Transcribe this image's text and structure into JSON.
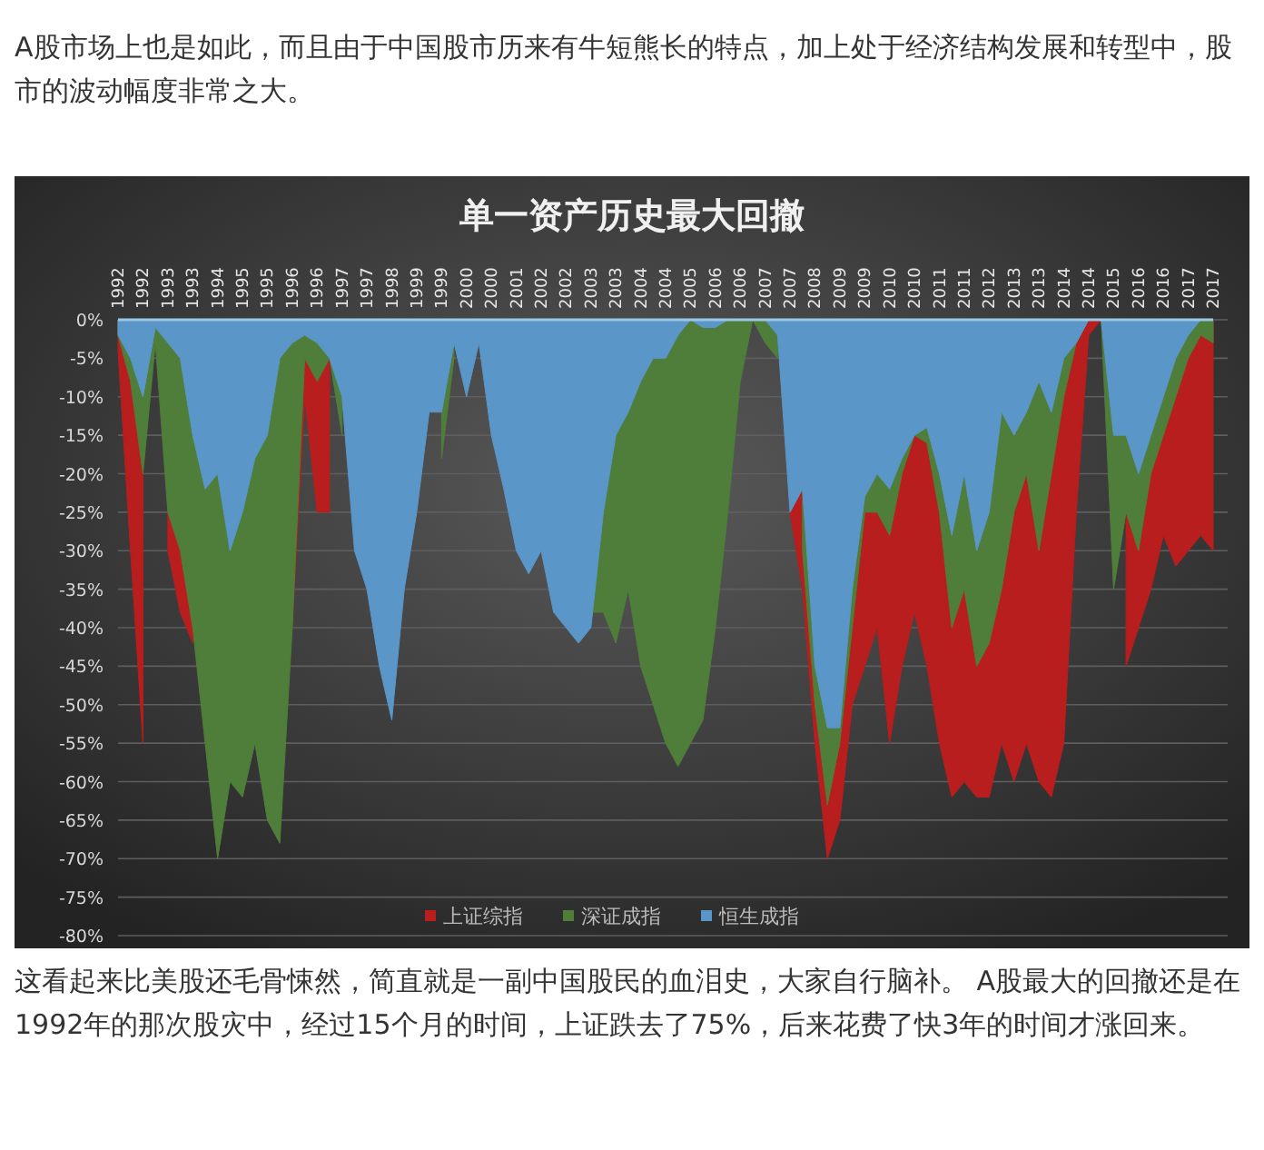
{
  "chart_data": {
    "type": "area",
    "title": "单一资产历史最大回撤",
    "annotations": [
      "A股市场上也是如此，而且由于中国股市历来有牛短熊长的特点，加上处于经济结构发展和转型中，股市的波动幅度非常之大。",
      "这看起来比美股还毛骨悚然，简直就是一副中国股民的血泪史，大家自行脑补。 A股最大的回撤还是在1992年的那次股灾中，经过15个月的时间，上证跌去了75%，后来花费了快3年的时间才涨回来。"
    ],
    "categories": [
      "1992",
      null,
      "1992",
      null,
      "1993",
      null,
      "1993",
      null,
      "1994",
      null,
      "1995",
      null,
      "1995",
      null,
      "1996",
      null,
      "1996",
      null,
      "1997",
      null,
      "1997",
      null,
      "1998",
      null,
      "1999",
      null,
      "1999",
      null,
      "2000",
      null,
      "2000",
      null,
      "2001",
      null,
      "2002",
      null,
      "2002",
      null,
      "2003",
      null,
      "2003",
      null,
      "2004",
      null,
      "2004",
      null,
      "2005",
      null,
      "2006",
      null,
      "2006",
      null,
      "2007",
      null,
      "2007",
      null,
      "2008",
      null,
      "2009",
      null,
      "2009",
      null,
      "2010",
      null,
      "2010",
      null,
      "2011",
      null,
      "2011",
      null,
      "2012",
      null,
      "2013",
      null,
      "2013",
      null,
      "2014",
      null,
      "2014",
      null,
      "2015",
      null,
      "2016",
      null,
      "2016",
      null,
      "2017",
      null,
      "2017"
    ],
    "series": [
      {
        "name": "上证综指",
        "color": "#b81e1e",
        "values": [
          -4,
          -30,
          -55,
          null,
          -30,
          -38,
          -42,
          null,
          null,
          null,
          null,
          null,
          null,
          null,
          -40,
          -10,
          -25,
          -25,
          null,
          null,
          null,
          null,
          null,
          null,
          null,
          null,
          null,
          null,
          null,
          null,
          null,
          null,
          null,
          null,
          null,
          null,
          null,
          null,
          null,
          null,
          null,
          null,
          null,
          null,
          null,
          null,
          null,
          null,
          null,
          null,
          null,
          0,
          -2,
          null,
          -25,
          -35,
          -55,
          -70,
          -65,
          -50,
          -45,
          -40,
          -55,
          -45,
          -38,
          -45,
          -55,
          -62,
          -60,
          -62,
          -62,
          -55,
          -60,
          -55,
          -60,
          -62,
          -55,
          -25,
          -2,
          0,
          null,
          -45,
          -40,
          -35,
          -28,
          -32,
          -30,
          -28,
          -30
        ]
      },
      {
        "name": "深证成指",
        "color": "#4f7d3a",
        "values": [
          -2,
          -8,
          -20,
          -3,
          -25,
          -30,
          -40,
          -55,
          -70,
          -60,
          -62,
          -55,
          -65,
          -68,
          -40,
          -5,
          -8,
          -5,
          -15,
          null,
          null,
          null,
          null,
          null,
          null,
          null,
          -18,
          -5,
          null,
          null,
          null,
          null,
          null,
          null,
          null,
          null,
          null,
          null,
          -38,
          -38,
          -42,
          -35,
          -45,
          -50,
          -55,
          -58,
          -55,
          -52,
          -40,
          -25,
          -8,
          0,
          -3,
          -5,
          null,
          -30,
          -50,
          -63,
          -55,
          -40,
          -25,
          -25,
          -28,
          -20,
          -15,
          -16,
          -25,
          -40,
          -35,
          -45,
          -42,
          -35,
          -25,
          -20,
          -30,
          -20,
          -10,
          -3,
          0,
          0,
          -35,
          -25,
          -30,
          -20,
          -15,
          -10,
          -5,
          -2,
          -3
        ]
      },
      {
        "name": "恒生成指",
        "color": "#5a96c8",
        "values": [
          -2,
          -5,
          -10,
          -1,
          -3,
          -5,
          -15,
          -22,
          -20,
          -30,
          -25,
          -18,
          -15,
          -5,
          -3,
          -2,
          -3,
          -5,
          -10,
          -30,
          -35,
          -45,
          -52,
          -35,
          -25,
          -12,
          -12,
          -3,
          -10,
          -3,
          -15,
          -22,
          -30,
          -33,
          -30,
          -38,
          -40,
          -42,
          -40,
          -25,
          -15,
          -12,
          -8,
          -5,
          -5,
          -2,
          0,
          -1,
          -1,
          0,
          0,
          0,
          0,
          -2,
          -25,
          -22,
          -45,
          -53,
          -53,
          -35,
          -23,
          -20,
          -22,
          -18,
          -15,
          -14,
          -20,
          -28,
          -20,
          -30,
          -25,
          -12,
          -15,
          -12,
          -8,
          -12,
          -5,
          -3,
          0,
          0,
          -15,
          -15,
          -20,
          -15,
          -10,
          -5,
          -2,
          0,
          0
        ]
      }
    ],
    "ylim": [
      -80,
      0
    ],
    "yticks": [
      {
        "value": 0,
        "label": "0%"
      },
      {
        "value": -5,
        "label": "-5%"
      },
      {
        "value": -10,
        "label": "-10%"
      },
      {
        "value": -15,
        "label": "-15%"
      },
      {
        "value": -20,
        "label": "-20%"
      },
      {
        "value": -25,
        "label": "-25%"
      },
      {
        "value": -30,
        "label": "-30%"
      },
      {
        "value": -35,
        "label": "-35%"
      },
      {
        "value": -40,
        "label": "-40%"
      },
      {
        "value": -45,
        "label": "-45%"
      },
      {
        "value": -50,
        "label": "-50%"
      },
      {
        "value": -55,
        "label": "-55%"
      },
      {
        "value": -60,
        "label": "-60%"
      },
      {
        "value": -65,
        "label": "-65%"
      },
      {
        "value": -70,
        "label": "-70%"
      },
      {
        "value": -75,
        "label": "-75%"
      },
      {
        "value": -80,
        "label": "-80%"
      }
    ],
    "grid": "y",
    "legend": "bottom"
  }
}
